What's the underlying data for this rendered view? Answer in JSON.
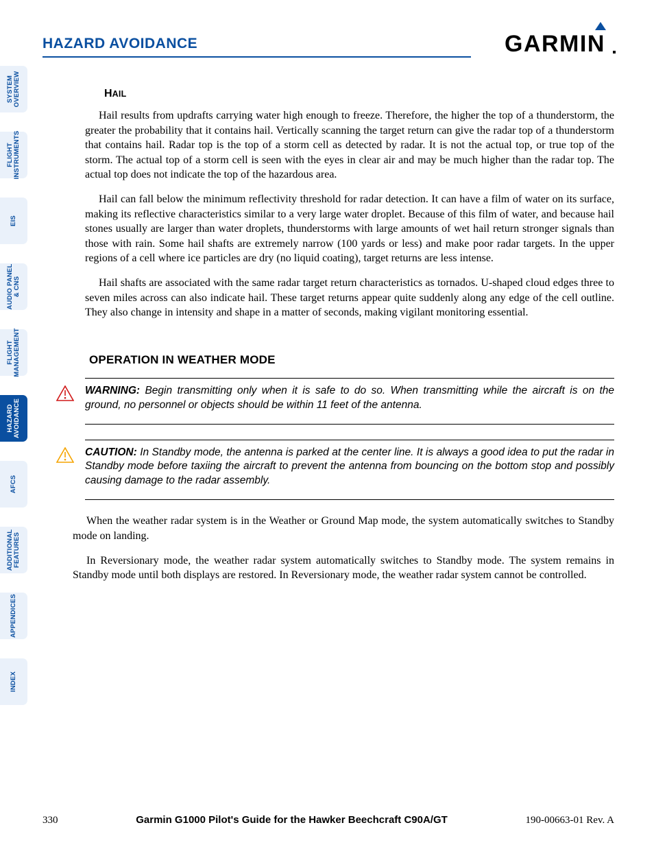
{
  "header": {
    "section_title": "HAZARD AVOIDANCE",
    "logo_text": "GARMIN",
    "accent_color": "#0a4fa0"
  },
  "tabs": [
    {
      "line1": "SYSTEM",
      "line2": "OVERVIEW",
      "active": false
    },
    {
      "line1": "FLIGHT",
      "line2": "INSTRUMENTS",
      "active": false
    },
    {
      "line1": "EIS",
      "line2": "",
      "active": false
    },
    {
      "line1": "AUDIO PANEL",
      "line2": "& CNS",
      "active": false
    },
    {
      "line1": "FLIGHT",
      "line2": "MANAGEMENT",
      "active": false
    },
    {
      "line1": "HAZARD",
      "line2": "AVOIDANCE",
      "active": true
    },
    {
      "line1": "AFCS",
      "line2": "",
      "active": false
    },
    {
      "line1": "ADDITIONAL",
      "line2": "FEATURES",
      "active": false
    },
    {
      "line1": "APPENDICES",
      "line2": "",
      "active": false
    },
    {
      "line1": "INDEX",
      "line2": "",
      "active": false
    }
  ],
  "content": {
    "hail_head_first": "H",
    "hail_head_rest": "AIL",
    "p1": "Hail results from updrafts carrying water high enough to freeze.  Therefore, the higher the top of a thunderstorm, the greater the probability that it contains hail.  Vertically scanning the target return can give the radar top of a thunderstorm that contains hail.  Radar top is the top of a storm cell as detected by radar.  It is not the actual top, or true top of the storm.  The actual top of a storm cell is seen with the eyes in clear air and may be much higher than the radar top.  The actual top does not indicate the top of the hazardous area.",
    "p2": "Hail can fall below the minimum reflectivity threshold for radar detection.  It can have a film of water on its surface, making its reflective characteristics similar to a very large water droplet.  Because of this film of water, and because hail stones usually are larger than water droplets, thunderstorms with large amounts of wet hail return stronger signals than those with rain.  Some hail shafts are extremely narrow (100 yards or less) and make poor radar targets.  In the upper regions of a cell where ice particles are dry (no liquid coating), target returns are less intense.",
    "p3": "Hail shafts are associated with the same radar target return characteristics as tornados.  U-shaped cloud edges three to seven miles across can also indicate hail.  These target returns appear quite suddenly along any edge of the cell outline.  They also change in intensity and shape in a matter of seconds, making vigilant monitoring essential.",
    "op_head": "OPERATION IN WEATHER MODE",
    "warning_lead": "WARNING:",
    "warning_body": "  Begin transmitting only when it is safe to do so.  When transmitting while the aircraft is on the ground, no personnel or objects should be within 11 feet of the antenna.",
    "caution_lead": "CAUTION:",
    "caution_body": "  In Standby mode, the antenna is parked at the center line.  It is always a good idea to put the radar in Standby mode before taxiing the aircraft to prevent the antenna from bouncing on the bottom stop and possibly causing damage to the radar assembly.",
    "p4": "When the weather radar system is in the Weather or Ground Map mode, the system automatically switches to Standby mode on landing.",
    "p5": "In Reversionary mode, the weather radar system automatically switches to Standby mode. The system remains in Standby mode until both displays are restored.  In Reversionary mode, the weather radar system cannot be controlled."
  },
  "colors": {
    "warning_stroke": "#d01818",
    "caution_stroke": "#f5a400"
  },
  "footer": {
    "page_num": "330",
    "center": "Garmin G1000 Pilot's Guide for the Hawker Beechcraft C90A/GT",
    "right": "190-00663-01  Rev. A"
  }
}
